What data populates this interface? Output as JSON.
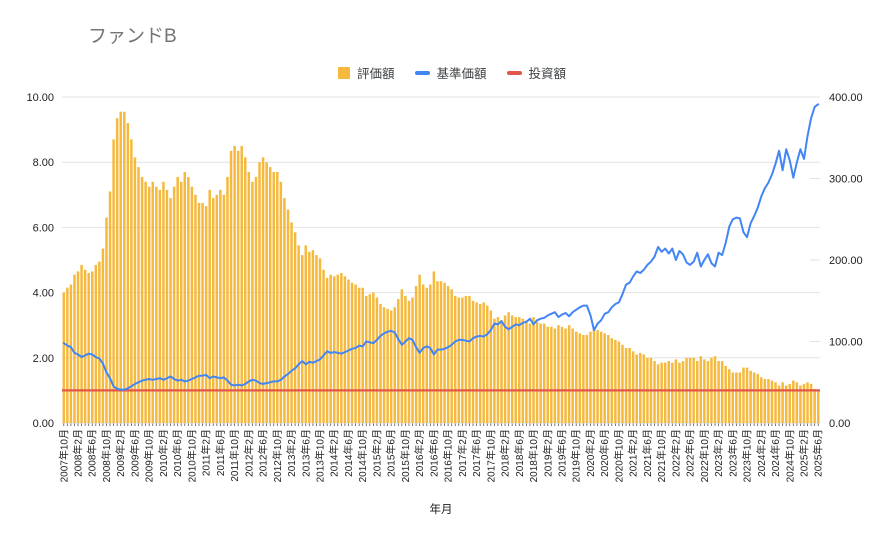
{
  "title": "ファンドB",
  "x_axis_title": "年月",
  "chart_data": {
    "type": "combo",
    "x_start": "2007年10月",
    "x_end": "2025年6月",
    "x_interval": "monthly",
    "x_tick_labels": [
      "2007年10月",
      "2008年2月",
      "2008年6月",
      "2008年10月",
      "2009年2月",
      "2009年6月",
      "2009年10月",
      "2010年2月",
      "2010年6月",
      "2010年10月",
      "2011年2月",
      "2011年6月",
      "2011年10月",
      "2012年2月",
      "2012年6月",
      "2012年10月",
      "2013年2月",
      "2013年6月",
      "2013年10月",
      "2014年2月",
      "2014年6月",
      "2014年10月",
      "2015年2月",
      "2015年6月",
      "2015年10月",
      "2016年2月",
      "2016年6月",
      "2016年10月",
      "2017年2月",
      "2017年6月",
      "2017年10月",
      "2018年2月",
      "2018年6月",
      "2018年10月",
      "2019年2月",
      "2019年6月",
      "2019年10月",
      "2020年2月",
      "2020年6月",
      "2020年10月",
      "2021年2月",
      "2021年6月",
      "2021年10月",
      "2022年2月",
      "2022年6月",
      "2022年10月",
      "2023年2月",
      "2023年6月",
      "2023年10月",
      "2024年2月",
      "2024年6月",
      "2024年10月",
      "2025年2月",
      "2025年6月"
    ],
    "left_axis": {
      "range": [
        0,
        10
      ],
      "ticks": [
        "0.00",
        "2.00",
        "4.00",
        "6.00",
        "8.00",
        "10.00"
      ]
    },
    "right_axis": {
      "range": [
        0,
        400
      ],
      "ticks": [
        "0.00",
        "100.00",
        "200.00",
        "300.00",
        "400.00"
      ]
    },
    "grid_color": "#e2e2e2",
    "legend_position": "top",
    "series": [
      {
        "name": "評価額",
        "type": "bar",
        "axis": "left",
        "color": "#F5B93E",
        "values": [
          4.0,
          4.15,
          4.25,
          4.55,
          4.65,
          4.85,
          4.7,
          4.6,
          4.65,
          4.85,
          4.95,
          5.35,
          6.3,
          7.1,
          8.7,
          9.35,
          9.55,
          9.55,
          9.2,
          8.7,
          8.15,
          7.85,
          7.55,
          7.4,
          7.25,
          7.4,
          7.25,
          7.15,
          7.4,
          7.15,
          6.9,
          7.25,
          7.55,
          7.4,
          7.7,
          7.55,
          7.25,
          7.0,
          6.75,
          6.75,
          6.65,
          7.15,
          6.9,
          7.0,
          7.15,
          7.0,
          7.55,
          8.35,
          8.5,
          8.35,
          8.5,
          8.15,
          7.7,
          7.4,
          7.55,
          8.0,
          8.15,
          8.0,
          7.85,
          7.7,
          7.7,
          7.4,
          6.9,
          6.55,
          6.15,
          5.85,
          5.45,
          5.15,
          5.45,
          5.25,
          5.3,
          5.15,
          5.05,
          4.7,
          4.45,
          4.55,
          4.5,
          4.55,
          4.6,
          4.5,
          4.4,
          4.3,
          4.25,
          4.15,
          4.15,
          3.9,
          3.95,
          4.0,
          3.85,
          3.65,
          3.55,
          3.5,
          3.45,
          3.55,
          3.8,
          4.1,
          3.9,
          3.75,
          3.85,
          4.2,
          4.55,
          4.25,
          4.15,
          4.25,
          4.65,
          4.35,
          4.35,
          4.3,
          4.2,
          4.1,
          3.9,
          3.85,
          3.85,
          3.9,
          3.9,
          3.75,
          3.7,
          3.65,
          3.7,
          3.6,
          3.45,
          3.2,
          3.25,
          3.15,
          3.3,
          3.4,
          3.3,
          3.25,
          3.25,
          3.2,
          3.15,
          3.05,
          3.25,
          3.1,
          3.05,
          3.05,
          2.95,
          2.95,
          2.9,
          3.0,
          2.95,
          2.9,
          3.0,
          2.9,
          2.8,
          2.75,
          2.7,
          2.7,
          2.8,
          2.95,
          2.85,
          2.8,
          2.75,
          2.7,
          2.6,
          2.55,
          2.5,
          2.4,
          2.3,
          2.3,
          2.2,
          2.1,
          2.15,
          2.1,
          2.0,
          2.0,
          1.9,
          1.8,
          1.85,
          1.85,
          1.9,
          1.85,
          1.95,
          1.85,
          1.9,
          2.0,
          2.0,
          2.0,
          1.9,
          2.05,
          1.95,
          1.9,
          2.0,
          2.05,
          1.9,
          1.9,
          1.75,
          1.65,
          1.55,
          1.55,
          1.55,
          1.7,
          1.7,
          1.6,
          1.55,
          1.5,
          1.4,
          1.35,
          1.35,
          1.3,
          1.25,
          1.15,
          1.25,
          1.15,
          1.2,
          1.3,
          1.25,
          1.15,
          1.2,
          1.25,
          1.2,
          1.05,
          1.0
        ]
      },
      {
        "name": "基準価額",
        "type": "line",
        "axis": "right",
        "color": "#4285F4",
        "values": [
          98,
          95,
          93,
          86,
          84,
          81,
          83,
          85,
          84,
          81,
          79,
          73,
          62,
          55,
          45,
          42,
          41,
          41,
          42.5,
          45,
          48,
          50,
          52,
          53,
          54,
          53,
          54,
          55,
          53,
          55,
          57,
          54,
          52,
          53,
          51,
          52,
          54,
          56,
          58,
          58,
          59,
          55,
          57,
          56,
          55,
          56,
          52,
          47,
          46,
          47,
          46,
          48,
          51,
          53,
          52,
          49,
          48,
          49,
          50,
          51,
          51,
          53,
          57,
          60,
          64,
          67,
          72,
          76,
          72,
          75,
          74,
          76,
          78,
          83,
          88,
          86,
          87,
          86,
          85,
          87,
          89,
          91,
          92,
          95,
          94,
          100,
          99,
          98,
          102,
          107,
          110,
          112,
          113,
          111,
          103,
          96,
          100,
          104,
          102,
          93,
          86,
          92,
          94,
          92,
          84,
          90,
          90,
          91,
          93,
          96,
          100,
          102,
          102,
          101,
          100,
          104,
          106,
          107,
          106,
          109,
          114,
          122,
          121,
          125,
          118,
          115,
          118,
          121,
          120,
          123,
          124,
          128,
          121,
          126,
          128,
          129,
          132,
          134,
          136,
          130,
          133,
          135,
          131,
          136,
          139,
          142,
          144,
          144,
          132,
          114,
          122,
          126,
          134,
          136,
          142,
          146,
          148,
          158,
          170,
          172,
          180,
          186,
          184,
          188,
          194,
          198,
          204,
          216,
          210,
          214,
          208,
          214,
          200,
          211,
          207,
          197,
          194,
          198,
          209,
          192,
          200,
          207,
          196,
          192,
          209,
          206,
          221,
          241,
          250,
          252,
          251,
          234,
          228,
          245,
          254,
          264,
          278,
          288,
          295,
          305,
          318,
          334,
          310,
          336,
          322,
          301,
          320,
          336,
          324,
          352,
          374,
          388,
          391
        ]
      },
      {
        "name": "投資額",
        "type": "line",
        "axis": "left",
        "color": "#E2574A",
        "constant": 1.0
      }
    ]
  }
}
